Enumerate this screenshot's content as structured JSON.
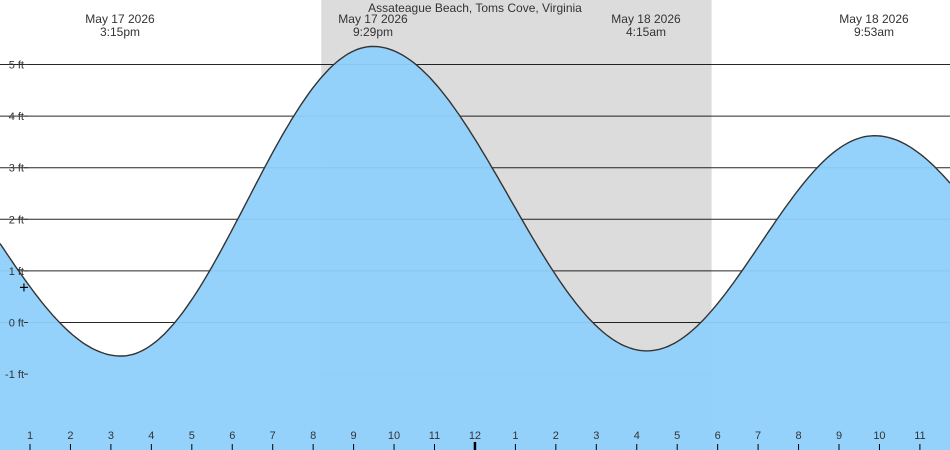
{
  "chart_data": {
    "type": "area",
    "title": "Assateague Beach, Toms Cove, Virginia",
    "ylabel": "",
    "xlabel": "",
    "ylim": [
      -2,
      6
    ],
    "y_ticks": [
      "5 ft",
      "4 ft",
      "3 ft",
      "2 ft",
      "1 ft",
      "0 ft",
      "-1 ft"
    ],
    "y_tick_values": [
      5,
      4,
      3,
      2,
      1,
      0,
      -1
    ],
    "x_range_hours": [
      0,
      23.5
    ],
    "hour_ticks": [
      1,
      2,
      3,
      4,
      5,
      6,
      7,
      8,
      9,
      10,
      11,
      12,
      1,
      2,
      3,
      4,
      5,
      6,
      7,
      8,
      9,
      10,
      11
    ],
    "hour_tick_values": [
      1,
      2,
      3,
      4,
      5,
      6,
      7,
      8,
      9,
      10,
      11,
      12,
      13,
      14,
      15,
      16,
      17,
      18,
      19,
      20,
      21,
      22,
      23
    ],
    "noon_hour": 12,
    "night_start_hour": 8.2,
    "night_end_hour": 17.85,
    "extremes": [
      {
        "date": "May 17 2026",
        "time": "3:15pm",
        "hour": 3.25,
        "value": -0.65,
        "kind": "low"
      },
      {
        "date": "May 17 2026",
        "time": "9:29pm",
        "hour": 9.48,
        "value": 5.35,
        "kind": "high"
      },
      {
        "date": "May 18 2026",
        "time": "4:15am",
        "hour": 16.25,
        "value": -0.55,
        "kind": "low"
      },
      {
        "date": "May 18 2026",
        "time": "9:53am",
        "hour": 21.88,
        "value": 3.62,
        "kind": "high"
      }
    ],
    "start_value": 1.55,
    "end_value": 2.78,
    "current_marker": {
      "hour": 0.85,
      "value": 0.68
    },
    "grid": true,
    "colors": {
      "water": "#8fd0fb",
      "night": "#dcdcdc",
      "curve": "#333333",
      "grid": "#000000"
    }
  }
}
